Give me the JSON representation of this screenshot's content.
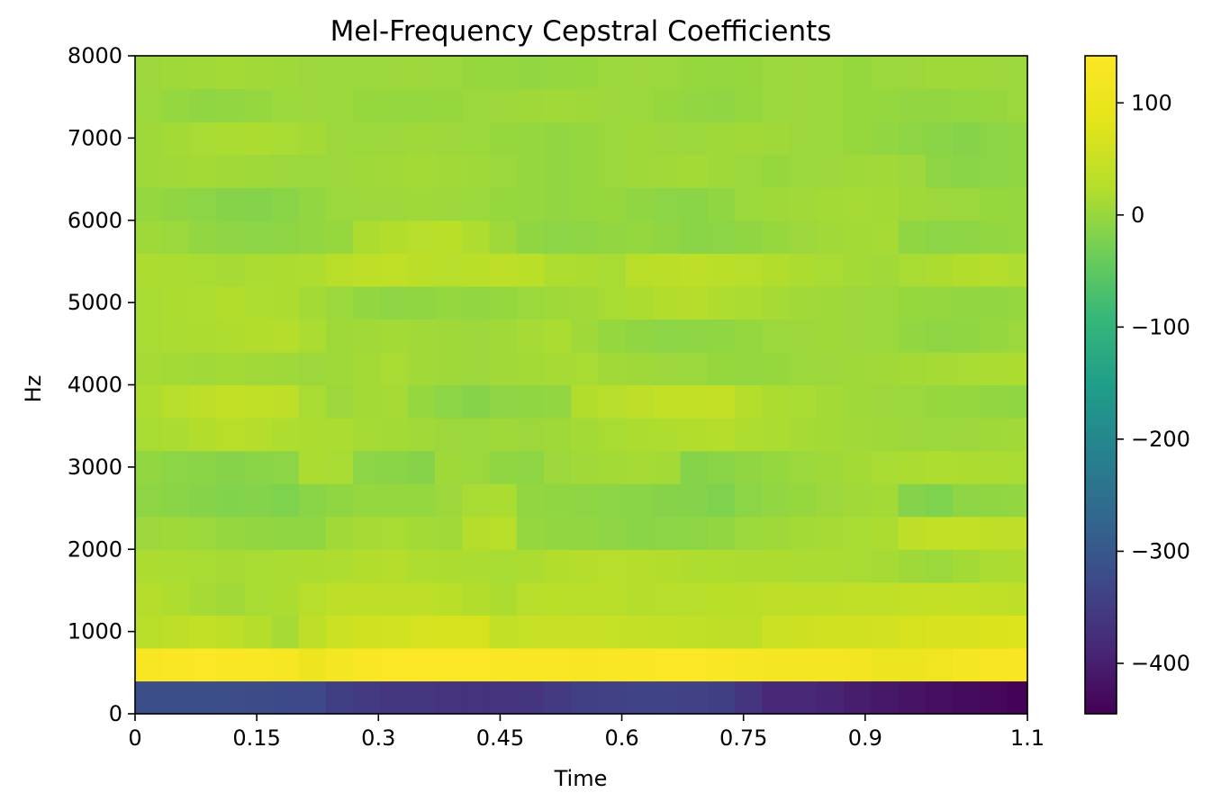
{
  "chart_data": {
    "type": "heatmap",
    "title": "Mel-Frequency Cepstral Coefficients",
    "xlabel": "Time",
    "ylabel": "Hz",
    "xlim": [
      0,
      1.1
    ],
    "ylim": [
      0,
      8000
    ],
    "x_ticks": [
      "0",
      "0.15",
      "0.3",
      "0.45",
      "0.6",
      "0.75",
      "0.9",
      "1.1"
    ],
    "y_ticks": [
      "0",
      "1000",
      "2000",
      "3000",
      "4000",
      "5000",
      "6000",
      "7000",
      "8000"
    ],
    "colorbar": {
      "colormap": "viridis",
      "range": [
        -445,
        142
      ],
      "ticks": [
        "100",
        "0",
        "−100",
        "−200",
        "−300",
        "−400"
      ]
    },
    "n_frames": 33,
    "n_coefficients": 20,
    "coefficient_rows": [
      [
        -318,
        -318,
        -318,
        -320,
        -322,
        -325,
        -328,
        -345,
        -352,
        -360,
        -362,
        -366,
        -366,
        -366,
        -364,
        -352,
        -344,
        -340,
        -338,
        -337,
        -340,
        -346,
        -364,
        -384,
        -385,
        -392,
        -402,
        -410,
        -418,
        -426,
        -430,
        -436,
        -442
      ],
      [
        132,
        136,
        138,
        136,
        136,
        128,
        110,
        120,
        136,
        138,
        140,
        140,
        138,
        136,
        136,
        134,
        132,
        134,
        136,
        138,
        138,
        136,
        128,
        126,
        126,
        124,
        118,
        104,
        104,
        112,
        124,
        130,
        132
      ],
      [
        28,
        36,
        40,
        34,
        24,
        12,
        34,
        52,
        58,
        60,
        64,
        66,
        66,
        40,
        44,
        48,
        48,
        44,
        42,
        40,
        38,
        34,
        36,
        52,
        54,
        58,
        58,
        62,
        66,
        70,
        70,
        72,
        74
      ],
      [
        24,
        20,
        12,
        8,
        14,
        18,
        26,
        34,
        34,
        36,
        36,
        30,
        22,
        18,
        26,
        30,
        28,
        28,
        24,
        26,
        26,
        30,
        32,
        34,
        36,
        36,
        38,
        38,
        40,
        42,
        40,
        38,
        36
      ],
      [
        18,
        16,
        14,
        12,
        14,
        16,
        18,
        20,
        22,
        24,
        20,
        18,
        16,
        14,
        18,
        22,
        24,
        26,
        24,
        22,
        20,
        20,
        18,
        18,
        16,
        16,
        14,
        12,
        6,
        2,
        10,
        16,
        18
      ],
      [
        4,
        6,
        2,
        -2,
        -4,
        -6,
        -6,
        8,
        12,
        14,
        10,
        8,
        24,
        28,
        -2,
        -4,
        -4,
        -8,
        -12,
        -10,
        -8,
        -4,
        2,
        6,
        10,
        12,
        14,
        18,
        36,
        40,
        40,
        36,
        34
      ],
      [
        -8,
        -12,
        -14,
        -18,
        -16,
        -20,
        -12,
        -6,
        -2,
        -2,
        -2,
        4,
        14,
        16,
        -4,
        -6,
        -8,
        -10,
        -12,
        -14,
        -16,
        -20,
        -10,
        -4,
        0,
        4,
        8,
        10,
        -16,
        -20,
        -8,
        -6,
        -4
      ],
      [
        -4,
        -10,
        -12,
        -14,
        -12,
        -10,
        16,
        14,
        -10,
        -12,
        -14,
        6,
        2,
        -6,
        -8,
        4,
        8,
        10,
        12,
        10,
        -14,
        -12,
        -6,
        -2,
        2,
        6,
        10,
        14,
        16,
        20,
        18,
        16,
        14
      ],
      [
        14,
        16,
        22,
        28,
        24,
        20,
        18,
        16,
        12,
        10,
        8,
        4,
        2,
        6,
        4,
        6,
        10,
        14,
        18,
        20,
        22,
        24,
        20,
        16,
        12,
        10,
        8,
        6,
        4,
        2,
        4,
        6,
        8
      ],
      [
        20,
        26,
        34,
        40,
        38,
        36,
        14,
        4,
        10,
        12,
        -2,
        -10,
        -14,
        -8,
        -6,
        -4,
        22,
        26,
        36,
        40,
        40,
        42,
        24,
        18,
        14,
        10,
        6,
        4,
        2,
        0,
        -2,
        -4,
        -6
      ],
      [
        12,
        10,
        8,
        10,
        8,
        6,
        4,
        6,
        10,
        14,
        8,
        6,
        4,
        8,
        10,
        12,
        14,
        8,
        6,
        4,
        2,
        0,
        -2,
        0,
        2,
        4,
        6,
        8,
        10,
        12,
        14,
        16,
        18
      ],
      [
        14,
        16,
        18,
        20,
        22,
        24,
        16,
        6,
        8,
        10,
        8,
        6,
        4,
        8,
        12,
        16,
        6,
        -2,
        -6,
        -10,
        -8,
        -6,
        -2,
        2,
        4,
        6,
        4,
        2,
        -4,
        -8,
        -6,
        -2,
        2
      ],
      [
        14,
        18,
        20,
        22,
        20,
        18,
        10,
        2,
        -4,
        -8,
        -6,
        -2,
        -4,
        -2,
        2,
        6,
        8,
        14,
        18,
        22,
        24,
        20,
        16,
        12,
        8,
        6,
        4,
        2,
        0,
        -2,
        -4,
        -4,
        -2
      ],
      [
        18,
        16,
        14,
        12,
        16,
        18,
        20,
        28,
        36,
        38,
        32,
        26,
        30,
        34,
        30,
        20,
        18,
        14,
        28,
        32,
        34,
        30,
        26,
        22,
        18,
        14,
        10,
        8,
        14,
        18,
        22,
        24,
        20
      ],
      [
        6,
        2,
        -4,
        -8,
        -10,
        -8,
        -4,
        0,
        18,
        22,
        26,
        30,
        20,
        6,
        -6,
        -10,
        -8,
        -4,
        -2,
        -6,
        -12,
        -10,
        -6,
        0,
        4,
        8,
        10,
        12,
        -6,
        -10,
        -8,
        -4,
        -2
      ],
      [
        -2,
        -6,
        -10,
        -14,
        -16,
        -12,
        -4,
        2,
        4,
        4,
        6,
        4,
        2,
        0,
        -2,
        -4,
        -2,
        0,
        -6,
        -10,
        -12,
        -6,
        2,
        6,
        8,
        10,
        12,
        10,
        6,
        4,
        2,
        0,
        -2
      ],
      [
        6,
        8,
        10,
        8,
        6,
        4,
        2,
        4,
        6,
        8,
        10,
        8,
        6,
        2,
        -2,
        -4,
        -2,
        2,
        6,
        8,
        10,
        6,
        2,
        0,
        2,
        4,
        6,
        8,
        4,
        -8,
        -12,
        -10,
        -6
      ],
      [
        6,
        10,
        14,
        16,
        18,
        14,
        10,
        4,
        2,
        4,
        6,
        4,
        2,
        0,
        -2,
        -4,
        -2,
        2,
        6,
        4,
        2,
        6,
        8,
        6,
        4,
        2,
        0,
        -4,
        -8,
        -12,
        -14,
        -10,
        -6
      ],
      [
        2,
        -2,
        -6,
        -4,
        -2,
        2,
        4,
        2,
        0,
        -2,
        -2,
        0,
        2,
        4,
        6,
        8,
        6,
        4,
        2,
        0,
        -4,
        -6,
        -2,
        2,
        4,
        2,
        0,
        -2,
        -4,
        -4,
        -2,
        0,
        2
      ],
      [
        4,
        6,
        8,
        10,
        8,
        6,
        4,
        2,
        2,
        4,
        4,
        2,
        0,
        -2,
        -4,
        -2,
        0,
        2,
        4,
        2,
        0,
        -2,
        0,
        2,
        4,
        2,
        0,
        2,
        4,
        6,
        6,
        4,
        2
      ]
    ]
  }
}
